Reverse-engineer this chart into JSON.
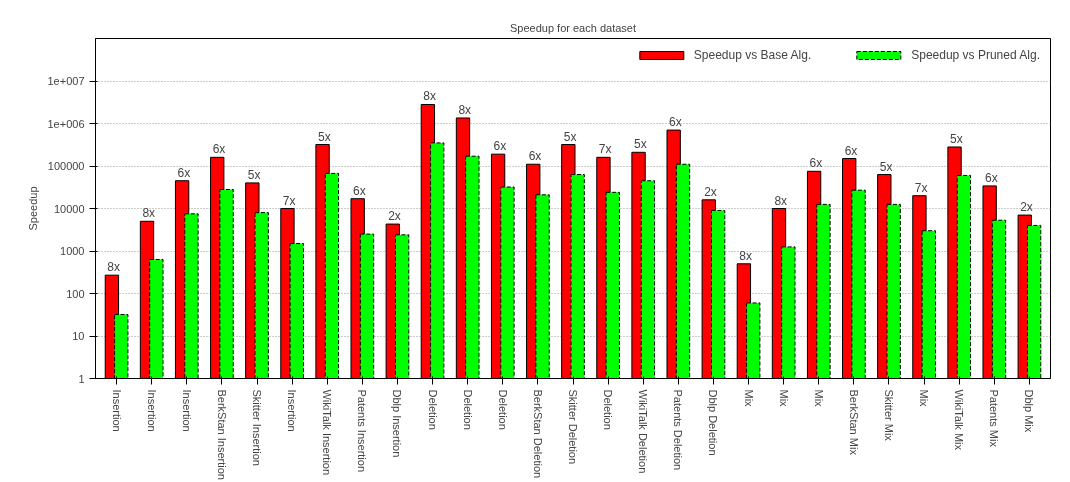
{
  "chart_data": {
    "type": "bar",
    "title": "Speedup for each dataset",
    "ylabel": "Speedup",
    "categories": [
      "Insertion",
      "Insertion",
      "Insertion",
      "BerkStan Insertion",
      "Skitter Insertion",
      "Insertion",
      "WikiTalk Insertion",
      "Patents Insertion",
      "Dblp Insertion",
      "Deletion",
      "Deletion",
      "Deletion",
      "BerkStan Deletion",
      "Skitter Deletion",
      "Deletion",
      "WikiTalk Deletion",
      "Patents Deletion",
      "Dblp Deletion",
      "Mix",
      "Mix",
      "Mix",
      "BerkStan Mix",
      "Skitter Mix",
      "Mix",
      "WikiTalk Mix",
      "Patents Mix",
      "Dblp Mix"
    ],
    "series": [
      {
        "name": "Speedup vs Base Alg.",
        "color": "#ff0000",
        "values": [
          270,
          5000,
          45000,
          160000,
          40000,
          10000,
          320000,
          17000,
          4300,
          2800000,
          1350000,
          190000,
          110000,
          320000,
          160000,
          210000,
          700000,
          16000,
          500,
          10000,
          75000,
          150000,
          63000,
          20000,
          280000,
          34000,
          7000
        ]
      },
      {
        "name": "Speedup vs Pruned Alg.",
        "color": "#00ff00",
        "line_style": "dashed",
        "values": [
          32,
          630,
          7500,
          28000,
          8000,
          1500,
          67000,
          2500,
          2400,
          350000,
          170000,
          32000,
          21000,
          63000,
          24000,
          45000,
          110000,
          9000,
          60,
          1250,
          12500,
          27000,
          12500,
          3000,
          60000,
          5300,
          4000
        ]
      }
    ],
    "log": "y",
    "ylim": [
      1,
      100000000
    ],
    "yticks": [
      1,
      10,
      100,
      1000,
      10000,
      100000,
      {
        "value": 1000000,
        "label": "1e+006"
      },
      {
        "value": 10000000,
        "label": "1e+007"
      }
    ],
    "grid": "y",
    "legend": "top right",
    "annotations": [
      "8x",
      "8x",
      "6x",
      "6x",
      "5x",
      "7x",
      "5x",
      "6x",
      "2x",
      "8x",
      "8x",
      "6x",
      "6x",
      "5x",
      "7x",
      "5x",
      "6x",
      "2x",
      "8x",
      "8x",
      "6x",
      "6x",
      "5x",
      "7x",
      "5x",
      "6x",
      "2x"
    ]
  }
}
